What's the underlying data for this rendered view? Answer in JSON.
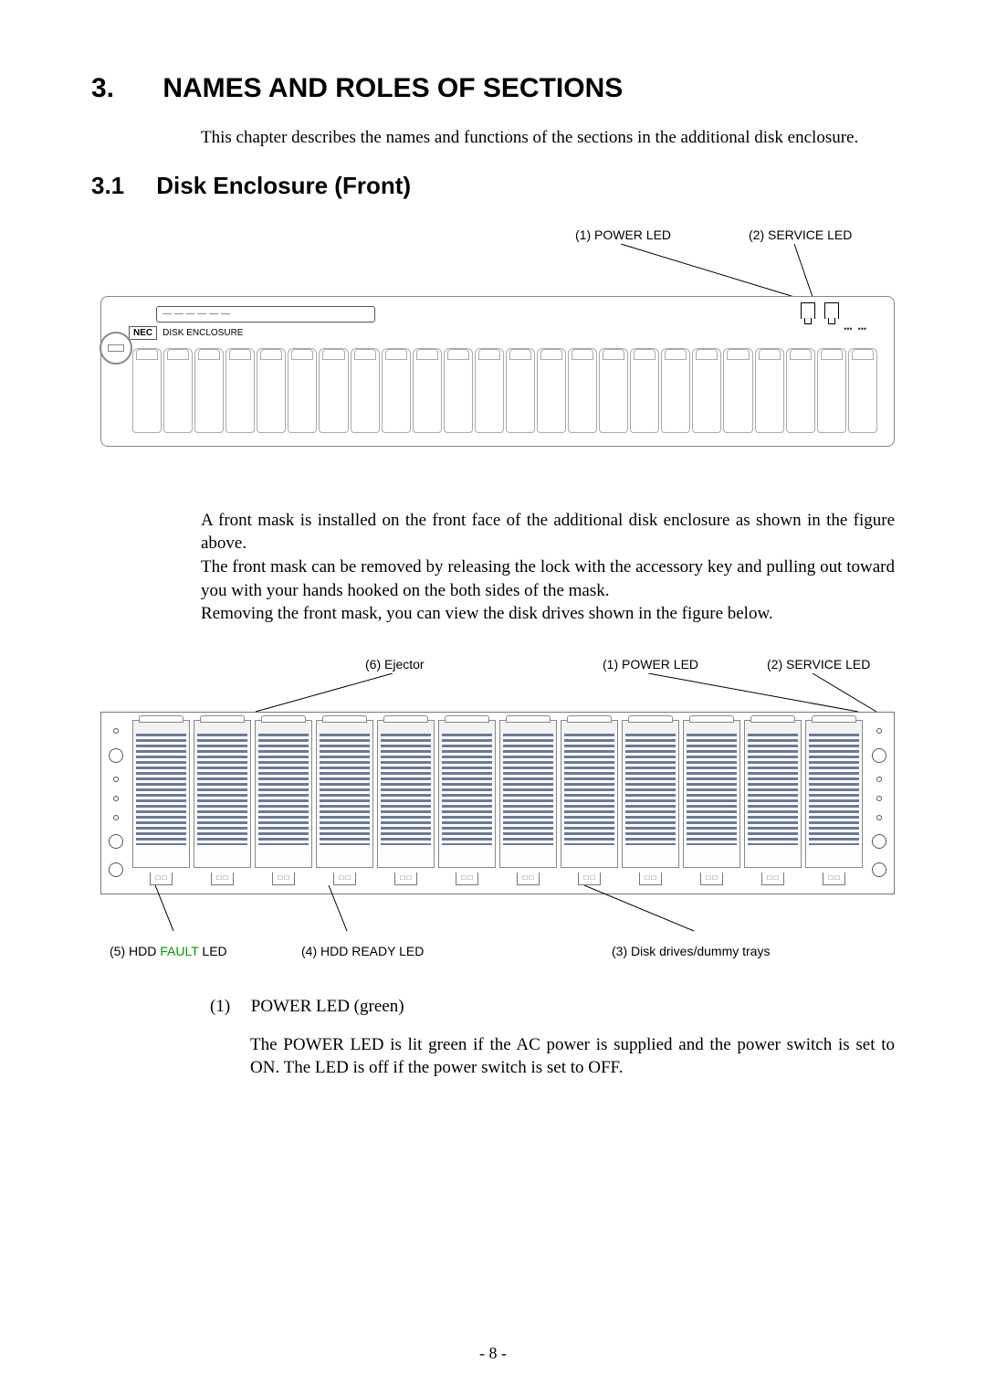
{
  "chapter": {
    "num": "3.",
    "title": "NAMES AND ROLES OF SECTIONS"
  },
  "intro": "This chapter describes the names and functions of the sections in the additional disk enclosure.",
  "section": {
    "num": "3.1",
    "title": "Disk Enclosure (Front)"
  },
  "fig1": {
    "label_power": "(1) POWER LED",
    "label_service": "(2) SERVICE LED",
    "strip_text": "— — — — — —",
    "badge_nec": "NEC",
    "badge_text": "DISK ENCLOSURE",
    "bay_count": 24,
    "leader_stroke": "#000000"
  },
  "para2_a": "A front mask is installed on the front face of the additional disk enclosure as shown in the figure above.",
  "para2_b": "The front mask can be removed by releasing the lock with the accessory key and pulling out toward you with your hands hooked on the both sides of the mask.",
  "para2_c": "Removing the front mask, you can view the disk drives shown in the figure below.",
  "fig2": {
    "label_ejector": "(6) Ejector",
    "label_power": "(1) POWER LED",
    "label_service": "(2) SERVICE LED",
    "slot_count": 12,
    "label_hdd_fault_a": "(5) HDD ",
    "label_hdd_fault_b": "FAULT",
    "label_hdd_fault_c": " LED",
    "label_hdd_ready": "(4) HDD READY LED",
    "label_drives": "(3) Disk drives/dummy trays",
    "bar_color": "#6a7a9a",
    "leader_stroke": "#000000",
    "fault_color": "#009a00"
  },
  "item1": {
    "num": "(1)",
    "title": "POWER LED (green)",
    "desc": "The POWER LED is lit green if the AC power is supplied and the power switch is set to ON. The LED is off if the power switch is set to OFF."
  },
  "page": "- 8 -"
}
